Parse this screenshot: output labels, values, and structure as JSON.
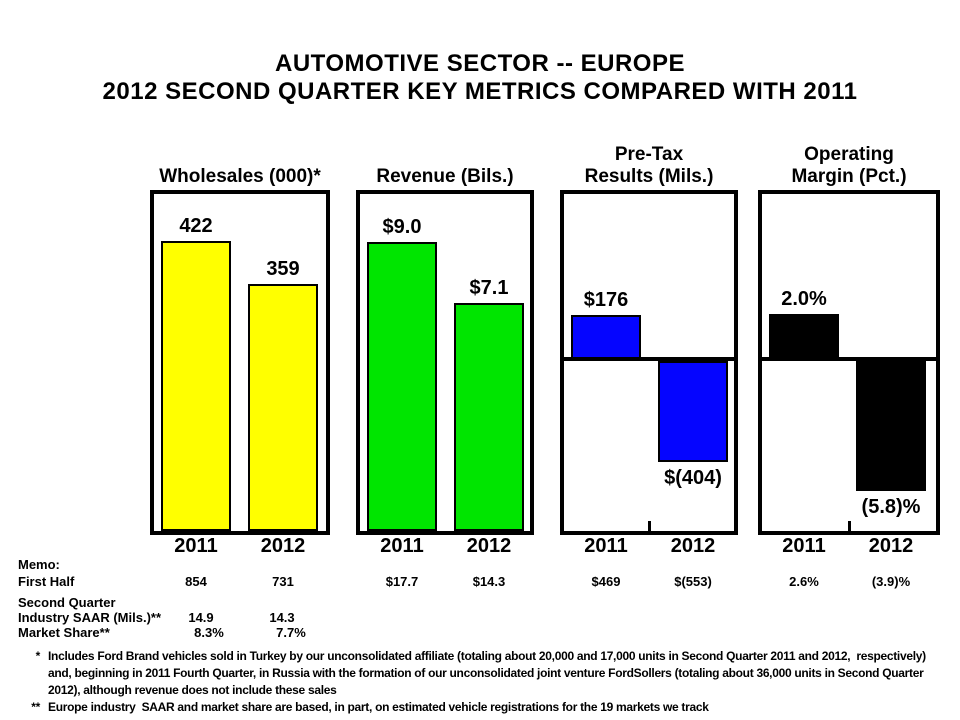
{
  "title": {
    "line1": "AUTOMOTIVE SECTOR -- EUROPE",
    "line2": "2012 SECOND QUARTER KEY METRICS COMPARED WITH 2011"
  },
  "chart_data": [
    {
      "type": "bar",
      "title_lines": [
        "Wholesales (000)*"
      ],
      "categories": [
        "2011",
        "2012"
      ],
      "values": [
        422,
        359
      ],
      "value_labels": [
        "422",
        "359"
      ],
      "bar_color": "#FFFF00",
      "ylim": [
        0,
        490
      ],
      "zero_line": false,
      "legend": "none",
      "grid": false
    },
    {
      "type": "bar",
      "title_lines": [
        "Revenue (Bils.)"
      ],
      "categories": [
        "2011",
        "2012"
      ],
      "values": [
        9.0,
        7.1
      ],
      "value_labels": [
        "$9.0",
        "$7.1"
      ],
      "bar_color": "#00E500",
      "ylim": [
        0,
        10.5
      ],
      "zero_line": false,
      "legend": "none",
      "grid": false
    },
    {
      "type": "bar",
      "title_lines": [
        "Pre-Tax",
        "Results (Mils.)"
      ],
      "categories": [
        "2011",
        "2012"
      ],
      "values": [
        176,
        -404
      ],
      "value_labels": [
        "$176",
        "$(404)"
      ],
      "bar_color": "#0505FF",
      "ylim": [
        -690,
        660
      ],
      "zero_line": true,
      "legend": "none",
      "grid": false
    },
    {
      "type": "bar",
      "title_lines": [
        "Operating",
        "Margin (Pct.)"
      ],
      "categories": [
        "2011",
        "2012"
      ],
      "values": [
        2.0,
        -5.8
      ],
      "value_labels": [
        "2.0%",
        "(5.8)%"
      ],
      "bar_color": "#000000",
      "ylim": [
        -7.65,
        7.33
      ],
      "zero_line": true,
      "legend": "none",
      "grid": false
    }
  ],
  "memo": {
    "heading": "Memo:",
    "first_half": {
      "label": "First Half",
      "values": [
        "854",
        "731",
        "$17.7",
        "$14.3",
        "$469",
        "$(553)",
        "2.6%",
        "(3.9)%"
      ]
    },
    "second_quarter_heading": "Second Quarter",
    "rows": [
      {
        "label": "Industry SAAR (Mils.)**",
        "values": [
          "14.9",
          "14.3"
        ]
      },
      {
        "label": "Market Share**",
        "values": [
          "8.3%",
          "7.7%"
        ]
      }
    ]
  },
  "footnotes": [
    {
      "marker": "*",
      "text": "Includes Ford Brand vehicles sold in Turkey by our unconsolidated affiliate (totaling about 20,000 and 17,000 units in Second Quarter 2011 and 2012,  respectively) and, beginning in 2011 Fourth Quarter, in Russia with the formation of our unconsolidated joint venture FordSollers (totaling about 36,000 units in Second Quarter 2012), although revenue does not include these sales"
    },
    {
      "marker": "**",
      "text": "Europe industry  SAAR and market share are based, in part, on estimated vehicle registrations for the 19 markets we track"
    }
  ],
  "colors": {
    "background": "#FFFFFF",
    "text": "#000000",
    "wholesales_bar": "#FFFF00",
    "revenue_bar": "#00E500",
    "pretax_bar": "#0505FF",
    "margin_bar": "#000000"
  }
}
